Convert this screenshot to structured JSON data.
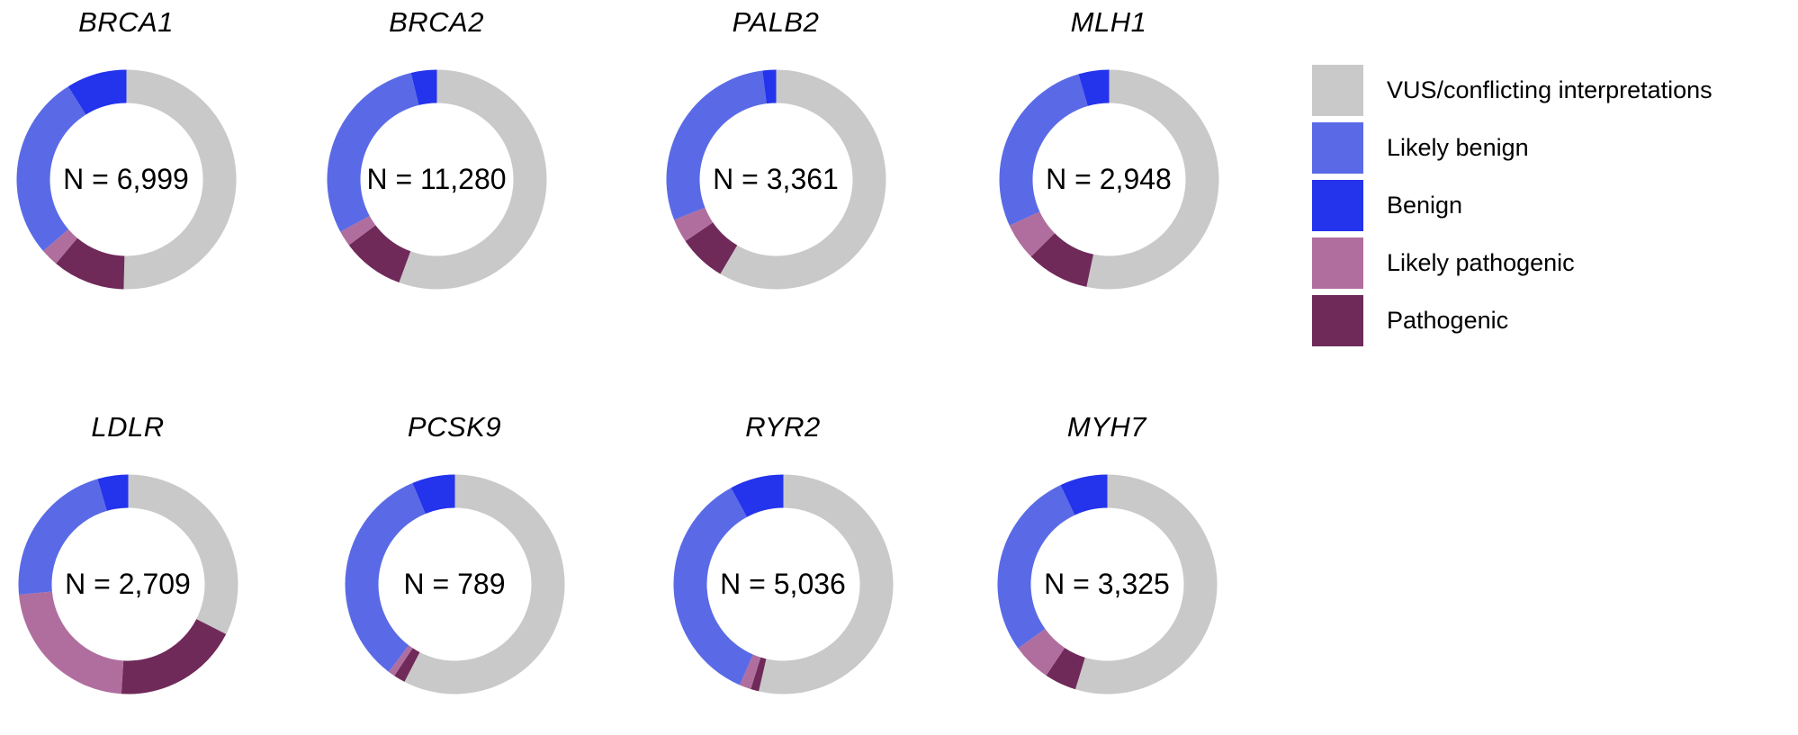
{
  "figure": {
    "background": "#FFFFFF"
  },
  "colors": {
    "vus": "#C9C9C9",
    "likely_benign": "#5A6AE6",
    "benign": "#2433EC",
    "likely_pathogenic": "#B06E9E",
    "pathogenic": "#6F2A59"
  },
  "legend": {
    "position": "right",
    "items": [
      {
        "key": "vus",
        "label": "VUS/conflicting interpretations"
      },
      {
        "key": "likely_benign",
        "label": "Likely benign"
      },
      {
        "key": "benign",
        "label": "Benign"
      },
      {
        "key": "likely_pathogenic",
        "label": "Likely pathogenic"
      },
      {
        "key": "pathogenic",
        "label": "Pathogenic"
      }
    ]
  },
  "chart_data": {
    "type": "pie",
    "subtype": "donut",
    "unit": "percent_of_variants",
    "start_angle_deg": 0,
    "draw_order_clockwise_from_top": [
      "vus",
      "pathogenic",
      "likely_pathogenic",
      "likely_benign",
      "benign"
    ],
    "categories": [
      "VUS/conflicting interpretations",
      "Likely benign",
      "Benign",
      "Likely pathogenic",
      "Pathogenic"
    ],
    "legend_position": "right",
    "grid": false,
    "charts": [
      {
        "gene": "BRCA1",
        "n": 6999,
        "n_label": "N = 6,999",
        "values": {
          "vus": 50.4,
          "pathogenic": 10.7,
          "likely_pathogenic": 2.6,
          "likely_benign": 27.4,
          "benign": 8.9
        }
      },
      {
        "gene": "BRCA2",
        "n": 11280,
        "n_label": "N = 11,280",
        "values": {
          "vus": 55.6,
          "pathogenic": 9.2,
          "likely_pathogenic": 2.3,
          "likely_benign": 29.1,
          "benign": 3.8
        }
      },
      {
        "gene": "PALB2",
        "n": 3361,
        "n_label": "N = 3,361",
        "values": {
          "vus": 58.5,
          "pathogenic": 7.0,
          "likely_pathogenic": 3.5,
          "likely_benign": 29.0,
          "benign": 2.0
        }
      },
      {
        "gene": "MLH1",
        "n": 2948,
        "n_label": "N = 2,948",
        "values": {
          "vus": 53.3,
          "pathogenic": 9.3,
          "likely_pathogenic": 5.5,
          "likely_benign": 27.4,
          "benign": 4.5
        }
      },
      {
        "gene": "LDLR",
        "n": 2709,
        "n_label": "N = 2,709",
        "values": {
          "vus": 32.5,
          "pathogenic": 18.5,
          "likely_pathogenic": 22.5,
          "likely_benign": 22.0,
          "benign": 4.5
        }
      },
      {
        "gene": "PCSK9",
        "n": 789,
        "n_label": "N = 789",
        "values": {
          "vus": 57.6,
          "pathogenic": 1.7,
          "likely_pathogenic": 1.0,
          "likely_benign": 33.4,
          "benign": 6.3
        }
      },
      {
        "gene": "RYR2",
        "n": 5036,
        "n_label": "N = 5,036",
        "values": {
          "vus": 53.6,
          "pathogenic": 1.2,
          "likely_pathogenic": 1.7,
          "likely_benign": 35.6,
          "benign": 7.9
        }
      },
      {
        "gene": "MYH7",
        "n": 3325,
        "n_label": "N = 3,325",
        "values": {
          "vus": 54.7,
          "pathogenic": 4.7,
          "likely_pathogenic": 5.7,
          "likely_benign": 27.9,
          "benign": 7.0
        }
      }
    ]
  }
}
